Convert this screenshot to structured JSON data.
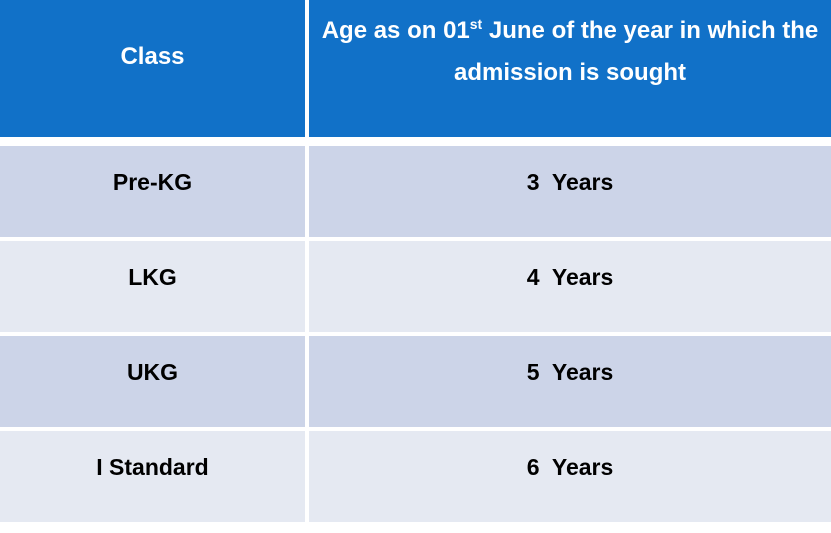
{
  "theme": {
    "header_bg": "#1171C8",
    "header_text": "#FFFFFF",
    "row_dark_bg": "#CCD4E8",
    "row_light_bg": "#E5E9F2",
    "body_text": "#000000",
    "divider": "#FFFFFF"
  },
  "table": {
    "columns": [
      {
        "label": "Class"
      },
      {
        "label_before_sup": "Age as on 01",
        "label_sup": "st",
        "label_line1_rest": " June of the year in which the",
        "label_line2": "admission is sought"
      }
    ],
    "rows": [
      {
        "class": "Pre-KG",
        "age": "3  Years"
      },
      {
        "class": "LKG",
        "age": "4  Years"
      },
      {
        "class": "UKG",
        "age": "5  Years"
      },
      {
        "class": "I Standard",
        "age": "6  Years"
      }
    ]
  },
  "chart_data": {
    "type": "table",
    "title": "",
    "columns": [
      "Class",
      "Age as on 01st June of the year in which the admission is sought"
    ],
    "rows": [
      [
        "Pre-KG",
        "3 Years"
      ],
      [
        "LKG",
        "4 Years"
      ],
      [
        "UKG",
        "5 Years"
      ],
      [
        "I Standard",
        "6 Years"
      ]
    ],
    "layout_hints": {
      "header_style": "blue background, white bold text",
      "body_style": "alternating periwinkle / pale-blue rows, bold black centered text",
      "right_edge_clipped": true
    }
  }
}
